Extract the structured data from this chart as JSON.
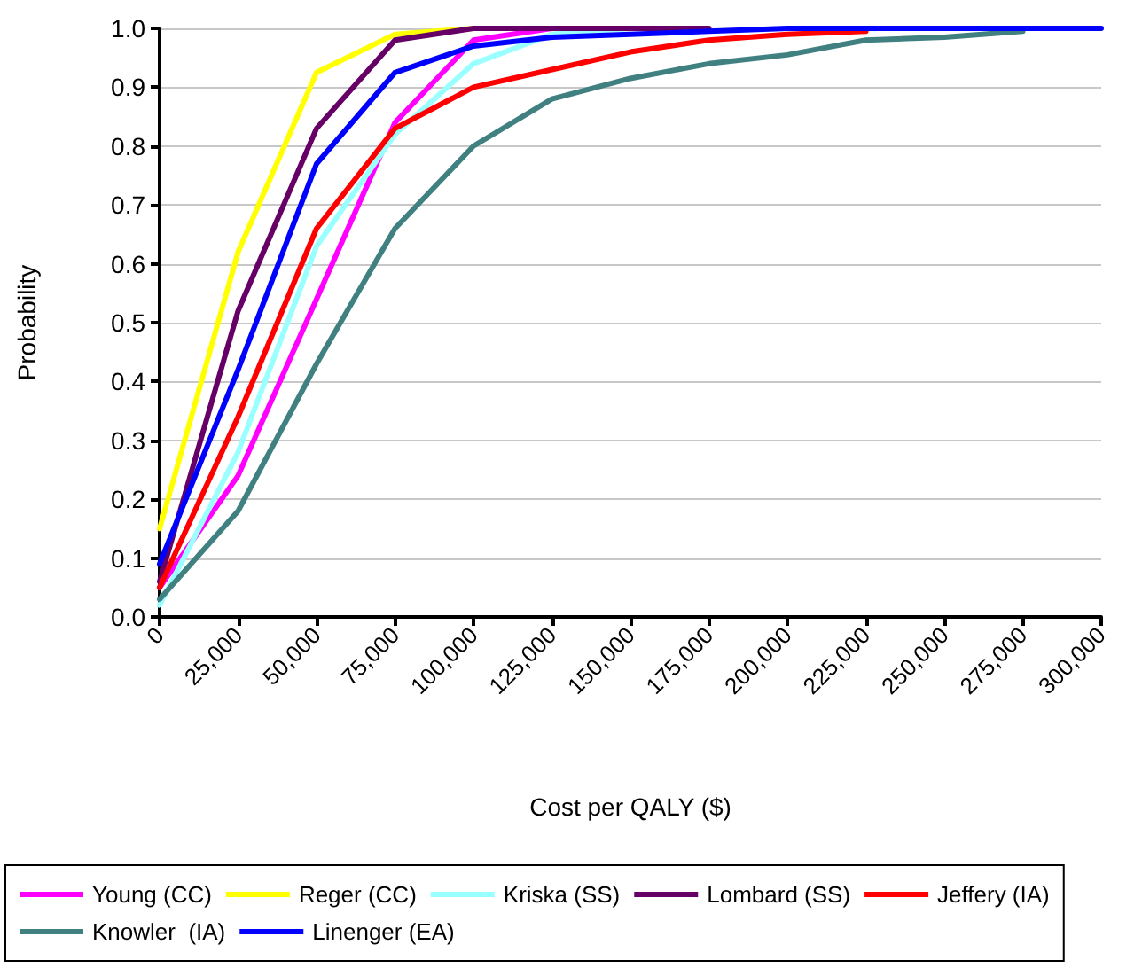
{
  "chart_data": {
    "type": "line",
    "xlabel": "Cost per QALY ($)",
    "ylabel": "Probability",
    "x": [
      0,
      25000,
      50000,
      75000,
      100000,
      125000,
      150000,
      175000,
      200000,
      225000,
      250000,
      275000,
      300000
    ],
    "xlim": [
      0,
      300000
    ],
    "xticks": [
      {
        "value": 0,
        "label": "0"
      },
      {
        "value": 25000,
        "label": "25,000"
      },
      {
        "value": 50000,
        "label": "50,000"
      },
      {
        "value": 75000,
        "label": "75,000"
      },
      {
        "value": 100000,
        "label": "100,000"
      },
      {
        "value": 125000,
        "label": "125,000"
      },
      {
        "value": 150000,
        "label": "150,000"
      },
      {
        "value": 175000,
        "label": "175,000"
      },
      {
        "value": 200000,
        "label": "200,000"
      },
      {
        "value": 225000,
        "label": "225,000"
      },
      {
        "value": 250000,
        "label": "250,000"
      },
      {
        "value": 275000,
        "label": "275,000"
      },
      {
        "value": 300000,
        "label": "300,000"
      }
    ],
    "ylim": [
      0,
      1
    ],
    "yticks": [
      {
        "value": 0,
        "label": "0.0"
      },
      {
        "value": 0.1,
        "label": "0.1"
      },
      {
        "value": 0.2,
        "label": "0.2"
      },
      {
        "value": 0.3,
        "label": "0.3"
      },
      {
        "value": 0.4,
        "label": "0.4"
      },
      {
        "value": 0.5,
        "label": "0.5"
      },
      {
        "value": 0.6,
        "label": "0.6"
      },
      {
        "value": 0.7,
        "label": "0.7"
      },
      {
        "value": 0.8,
        "label": "0.8"
      },
      {
        "value": 0.9,
        "label": "0.9"
      },
      {
        "value": 1,
        "label": "1.0"
      }
    ],
    "grid": "y",
    "legend": "bottom",
    "marker": "none",
    "line_style": "solid",
    "series": [
      {
        "name": "Young (CC)",
        "color": "#ff00ff",
        "values": [
          0.05,
          0.24,
          0.54,
          0.84,
          0.98,
          1.0,
          null,
          null,
          null,
          null,
          null,
          null,
          null
        ]
      },
      {
        "name": "Reger (CC)",
        "color": "#ffff00",
        "values": [
          0.15,
          0.62,
          0.925,
          0.99,
          1.0,
          null,
          null,
          null,
          null,
          null,
          null,
          null,
          null
        ]
      },
      {
        "name": "Kriska (SS)",
        "color": "#99ffff",
        "values": [
          0.02,
          0.28,
          0.63,
          0.82,
          0.94,
          0.99,
          1.0,
          null,
          null,
          null,
          null,
          null,
          null
        ]
      },
      {
        "name": "Lombard (SS)",
        "color": "#660066",
        "values": [
          0.06,
          0.52,
          0.83,
          0.98,
          1.0,
          1.0,
          1.0,
          1.0,
          null,
          null,
          null,
          null,
          null
        ]
      },
      {
        "name": "Jeffery (IA)",
        "color": "#ff0000",
        "values": [
          0.05,
          0.34,
          0.66,
          0.83,
          0.9,
          0.93,
          0.96,
          0.98,
          0.99,
          0.995,
          null,
          null,
          null
        ]
      },
      {
        "name": "Knowler  (IA)",
        "color": "#408080",
        "values": [
          0.03,
          0.18,
          0.43,
          0.66,
          0.8,
          0.88,
          0.915,
          0.94,
          0.955,
          0.98,
          0.985,
          0.995,
          null
        ]
      },
      {
        "name": "Linenger (EA)",
        "color": "#0000ff",
        "values": [
          0.09,
          0.42,
          0.77,
          0.925,
          0.97,
          0.985,
          0.99,
          0.995,
          1.0,
          1.0,
          1.0,
          1.0,
          1.0
        ]
      }
    ]
  }
}
